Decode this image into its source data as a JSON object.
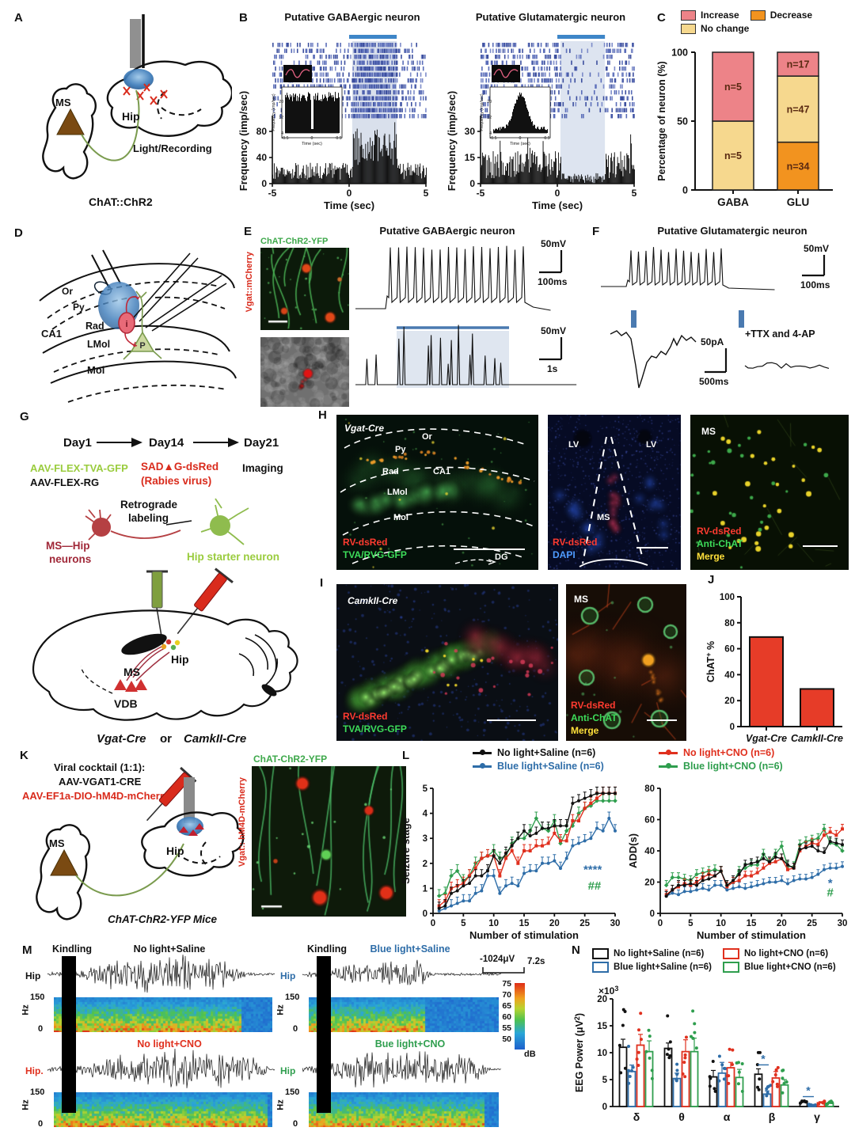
{
  "colors": {
    "black": "#111111",
    "red": "#e0301e",
    "blue": "#2e6da8",
    "green": "#2f9e4e",
    "stim_blue": "#4a7ab0",
    "raster_blue": "#4a5ca8",
    "bar_red": "#e63c28",
    "salmon": "#ed8388",
    "orange": "#f2931f",
    "pale_yellow": "#f6d88e"
  },
  "panelA": {
    "letter": "A",
    "ms": "MS",
    "hip": "Hip",
    "light": "Light/Recording",
    "caption": "ChAT::ChR2"
  },
  "panelB": {
    "letter": "B",
    "gaba": {
      "title": "Putative GABAergic neuron"
    },
    "glu": {
      "title": "Putative Glutamatergic neuron"
    }
  },
  "panelC": {
    "letter": "C"
  },
  "panelD": {
    "letter": "D",
    "or": "Or",
    "py": "Py",
    "rad": "Rad",
    "ca1": "CA1",
    "lmol": "LMol",
    "mol": "Mol",
    "i": "i",
    "p": "P"
  },
  "panelE": {
    "letter": "E",
    "title": "Putative GABAergic neuron",
    "img_top": "ChAT-ChR2-YFP",
    "img_side": "Vgat::mCherry",
    "scale1a": "50mV",
    "scale1b": "100ms",
    "scale2a": "50mV",
    "scale2b": "1s"
  },
  "panelF": {
    "letter": "F",
    "title": "Putative Glutamatergic neuron",
    "scale1a": "50mV",
    "scale1b": "100ms",
    "scale2a": "50pA",
    "scale2b": "500ms",
    "ttx": "+TTX and 4-AP"
  },
  "panelG": {
    "letter": "G",
    "day1": "Day1",
    "day14": "Day14",
    "day21": "Day21",
    "v1": "AAV-FLEX-TVA-GFP",
    "v2": "AAV-FLEX-RG",
    "v3": "SAD▲G-dsRed",
    "v3b": "(Rabies virus)",
    "imaging": "Imaging",
    "retro1": "Retrograde",
    "retro2": "labeling",
    "mship1": "MS—Hip",
    "mship2": "neurons",
    "starter": "Hip starter neuron",
    "ms": "MS",
    "vdb": "VDB",
    "hip": "Hip",
    "cap1": "Vgat-Cre",
    "capor": "or",
    "cap2": "CamkII-Cre"
  },
  "panelH": {
    "letter": "H",
    "i1": {
      "tag": "Vgat-Cre",
      "or": "Or",
      "py": "Py",
      "rad": "Rad",
      "ca1": "CA1",
      "lmol": "LMol",
      "mol": "Mol",
      "dg": "DG",
      "f1": "RV-dsRed",
      "f2": "TVA/RVG-GFP"
    },
    "i2": {
      "lv1": "LV",
      "lv2": "LV",
      "ms": "MS",
      "f1": "RV-dsRed",
      "f2": "DAPI"
    },
    "i3": {
      "ms": "MS",
      "f1": "RV-dsRed",
      "f2": "Anti-ChAT",
      "f3": "Merge"
    }
  },
  "panelI": {
    "letter": "I",
    "i1": {
      "tag": "CamkII-Cre",
      "f1": "RV-dsRed",
      "f2": "TVA/RVG-GFP"
    },
    "i2": {
      "ms": "MS",
      "f1": "RV-dsRed",
      "f2": "Anti-ChAT",
      "f3": "Merge"
    }
  },
  "panelJ": {
    "letter": "J"
  },
  "panelK": {
    "letter": "K",
    "t1": "Viral cocktail (1:1):",
    "t2": "AAV-VGAT1-CRE",
    "t3": "AAV-EF1a-DIO-hM4D-mCherry",
    "ms": "MS",
    "hip": "Hip",
    "mice": "ChAT-ChR2-YFP Mice",
    "img_top": "ChAT-ChR2-YFP",
    "img_side": "Vgat:: hM4D-mCherry"
  },
  "panelL": {
    "letter": "L",
    "legend": [
      {
        "label": "No light+Saline (n=6)",
        "color": "#111111"
      },
      {
        "label": "No light+CNO (n=6)",
        "color": "#e0301e"
      },
      {
        "label": "Blue light+Saline (n=6)",
        "color": "#2e6da8"
      },
      {
        "label": "Blue light+CNO (n=6)",
        "color": "#2f9e4e"
      }
    ]
  },
  "panelM": {
    "letter": "M",
    "kindling": "Kindling",
    "rows": [
      {
        "title": "No light+Saline",
        "color": "#111111",
        "hip": "Hip"
      },
      {
        "title": "No light+CNO",
        "color": "#e0301e",
        "hip": "Hip."
      },
      {
        "title": "Blue light+Saline",
        "color": "#2e6da8",
        "hip": "Hip"
      },
      {
        "title": "Bue light+CNO",
        "color": "#2f9e4e",
        "hip": "Hip"
      }
    ],
    "hz": "Hz",
    "f150": "150",
    "f0": "0",
    "scale_uv": "-1024μV",
    "scale_s": "7.2s",
    "db_ticks": [
      75,
      70,
      65,
      60,
      55,
      50
    ],
    "db": "dB"
  },
  "panelN": {
    "letter": "N",
    "legend": [
      {
        "label": "No light+Saline (n=6)",
        "color": "#111111"
      },
      {
        "label": "No light+CNO (n=6)",
        "color": "#e0301e"
      },
      {
        "label": "Blue light+Saline (n=6)",
        "color": "#2e6da8"
      },
      {
        "label": "Blue light+CNO (n=6)",
        "color": "#2f9e4e"
      }
    ]
  },
  "chart_data": [
    {
      "id": "B_gaba",
      "type": "raster_psth",
      "title": "Putative GABAergic neuron",
      "ylabel": "Frequency (imp/sec)",
      "yticks": [
        0,
        40,
        80
      ],
      "xlabel": "Time (sec)",
      "xticks": [
        -5,
        0,
        5
      ],
      "xlim": [
        -5,
        5
      ],
      "stim_window_sec": [
        0.2,
        3.1
      ],
      "response": "increase",
      "baseline_rate_imp_s": 18,
      "stim_rate_imp_s": 45,
      "inset": {
        "ylabel": "Frequency (imp/sec)",
        "yticks": [
          4,
          12,
          20
        ],
        "xlabel": "Time (sec)",
        "xticks": [
          -0.5,
          0,
          0.5
        ],
        "shape": "dip_at_zero"
      }
    },
    {
      "id": "B_glu",
      "type": "raster_psth",
      "title": "Putative Glutamatergic neuron",
      "ylabel": "Frequency (imp/sec)",
      "yticks": [
        0,
        15,
        30
      ],
      "xlabel": "Time (sec)",
      "xticks": [
        -5,
        0,
        5
      ],
      "xlim": [
        -5,
        5
      ],
      "stim_window_sec": [
        0.2,
        3.1
      ],
      "response": "decrease",
      "baseline_rate_imp_s": 8,
      "stim_rate_imp_s": 2,
      "inset": {
        "ylabel": "Frequency (imp/sec)",
        "yticks": [
          4,
          12,
          20
        ],
        "xlabel": "Time (sec)",
        "xticks": [
          -0.5,
          0,
          0.5
        ],
        "shape": "peak_at_zero"
      }
    },
    {
      "id": "C",
      "type": "stacked_bar",
      "ylabel": "Percentage of neuron (%)",
      "yticks": [
        0,
        50,
        100
      ],
      "ylim": [
        0,
        100
      ],
      "categories": [
        "GABA",
        "GLU"
      ],
      "legend_items": [
        {
          "label": "Increase",
          "color": "#ed8388"
        },
        {
          "label": "Decrease",
          "color": "#f2931f"
        },
        {
          "label": "No change",
          "color": "#f6d88e"
        }
      ],
      "stacks": {
        "GABA": [
          {
            "name": "No change",
            "pct": 50,
            "n": "n=5"
          },
          {
            "name": "Increase",
            "pct": 50,
            "n": "n=5"
          }
        ],
        "GLU": [
          {
            "name": "Decrease",
            "pct": 34.7,
            "n": "n=34"
          },
          {
            "name": "No change",
            "pct": 48,
            "n": "n=47"
          },
          {
            "name": "Increase",
            "pct": 17.3,
            "n": "n=17"
          }
        ]
      }
    },
    {
      "id": "J",
      "type": "bar",
      "ylabel_parts": [
        "ChAT",
        "+",
        " %"
      ],
      "yticks": [
        0,
        20,
        40,
        60,
        80,
        100
      ],
      "ylim": [
        0,
        100
      ],
      "categories": [
        "Vgat-Cre",
        "CamkII-Cre"
      ],
      "values": [
        69,
        29
      ],
      "bar_color": "#e63c28"
    },
    {
      "id": "L_stage",
      "type": "line",
      "ylabel": "Seizure stage",
      "xlabel": "Number of stimulation",
      "yticks": [
        0,
        1,
        2,
        3,
        4,
        5
      ],
      "xticks": [
        0,
        5,
        10,
        15,
        20,
        25,
        30
      ],
      "ylim": [
        0,
        5
      ],
      "xlim": [
        0,
        30
      ],
      "err": 0.25,
      "annotations": [
        {
          "text": "****",
          "color": "#2e6da8",
          "x": 26.3,
          "y": 1.6
        },
        {
          "text": "##",
          "color": "#2f9e4e",
          "x": 26.6,
          "y": 0.95
        }
      ],
      "series": [
        {
          "name": "No light+Saline (n=6)",
          "color": "#111111",
          "marker": "circle",
          "values": [
            0.2,
            0.3,
            0.8,
            0.9,
            1.1,
            1.2,
            1.5,
            1.5,
            1.7,
            2.3,
            2.0,
            2.4,
            2.7,
            3.0,
            3.3,
            3.1,
            3.2,
            3.4,
            3.4,
            3.5,
            3.5,
            3.5,
            4.4,
            4.5,
            4.6,
            4.7,
            4.8,
            4.8,
            4.8,
            4.8
          ]
        },
        {
          "name": "No light+CNO (n=6)",
          "color": "#e0301e",
          "marker": "square",
          "values": [
            0.3,
            0.5,
            1.0,
            1.1,
            1.2,
            1.5,
            1.8,
            2.2,
            2.3,
            2.3,
            1.5,
            2.2,
            2.5,
            2.0,
            2.5,
            2.5,
            2.7,
            2.7,
            2.8,
            3.2,
            2.9,
            2.9,
            3.7,
            3.7,
            4.2,
            4.4,
            4.6,
            4.8,
            4.8,
            4.8
          ]
        },
        {
          "name": "Blue light+Saline (n=6)",
          "color": "#2e6da8",
          "marker": "circle",
          "values": [
            0.1,
            0.2,
            0.3,
            0.4,
            0.5,
            0.5,
            0.8,
            0.9,
            1.5,
            1.5,
            0.8,
            1.1,
            1.2,
            1.1,
            1.6,
            1.7,
            1.7,
            2.0,
            2.0,
            2.1,
            1.8,
            2.2,
            2.7,
            2.8,
            2.9,
            3.0,
            3.4,
            3.3,
            3.8,
            3.3
          ]
        },
        {
          "name": "Blue light+CNO (n=6)",
          "color": "#2f9e4e",
          "marker": "diamond",
          "values": [
            0.7,
            0.8,
            1.5,
            1.7,
            1.3,
            1.5,
            2.0,
            2.2,
            2.3,
            2.5,
            2.2,
            2.3,
            2.8,
            3.0,
            3.0,
            3.3,
            3.8,
            3.4,
            3.3,
            3.7,
            2.8,
            3.3,
            3.5,
            4.0,
            4.2,
            4.3,
            4.5,
            4.5,
            4.5,
            4.5
          ]
        }
      ]
    },
    {
      "id": "L_add",
      "type": "line",
      "ylabel": "ADD(s)",
      "xlabel": "Number of stimulation",
      "yticks": [
        0,
        20,
        40,
        60,
        80
      ],
      "xticks": [
        0,
        5,
        10,
        15,
        20,
        25,
        30
      ],
      "ylim": [
        0,
        80
      ],
      "xlim": [
        0,
        30
      ],
      "err": 3,
      "annotations": [
        {
          "text": "*",
          "color": "#2e6da8",
          "x": 28,
          "y": 17
        },
        {
          "text": "#",
          "color": "#2f9e4e",
          "x": 28,
          "y": 11
        }
      ],
      "series": [
        {
          "name": "No light+Saline (n=6)",
          "color": "#111111",
          "marker": "circle",
          "values": [
            11,
            15,
            18,
            18,
            19,
            18,
            21,
            22,
            24,
            27,
            18,
            21,
            25,
            31,
            32,
            33,
            35,
            33,
            36,
            35,
            31,
            29,
            41,
            42,
            43,
            40,
            39,
            46,
            45,
            44
          ]
        },
        {
          "name": "No light+CNO (n=6)",
          "color": "#e0301e",
          "marker": "square",
          "values": [
            12,
            15,
            17,
            19,
            18,
            20,
            23,
            25,
            24,
            27,
            17,
            20,
            21,
            24,
            24,
            26,
            29,
            32,
            33,
            35,
            28,
            29,
            40,
            43,
            45,
            44,
            50,
            52,
            50,
            54
          ]
        },
        {
          "name": "Blue light+Saline (n=6)",
          "color": "#2e6da8",
          "marker": "circle",
          "values": [
            11,
            13,
            12,
            14,
            14,
            15,
            16,
            15,
            18,
            18,
            15,
            16,
            17,
            16,
            17,
            18,
            19,
            20,
            20,
            21,
            19,
            21,
            22,
            22,
            23,
            25,
            28,
            29,
            29,
            30
          ]
        },
        {
          "name": "Blue light+CNO (n=6)",
          "color": "#2f9e4e",
          "marker": "diamond",
          "values": [
            18,
            23,
            23,
            22,
            21,
            25,
            26,
            27,
            28,
            27,
            18,
            20,
            27,
            29,
            31,
            31,
            38,
            33,
            38,
            43,
            30,
            30,
            44,
            46,
            47,
            48,
            54,
            45,
            44,
            40
          ]
        }
      ]
    },
    {
      "id": "N",
      "type": "grouped_bar",
      "ylabel_parts": [
        "EEG Power (μV",
        "2",
        ")"
      ],
      "scale_parts": [
        "×10",
        "3"
      ],
      "yticks": [
        0,
        5,
        10,
        15,
        20
      ],
      "ylim": [
        0,
        20
      ],
      "categories": [
        "δ",
        "θ",
        "α",
        "β",
        "γ"
      ],
      "series": [
        {
          "name": "No light+Saline (n=6)",
          "color": "#111111",
          "values": [
            11,
            10.8,
            5.5,
            6,
            0.8
          ],
          "err": [
            1.5,
            1,
            1.2,
            1,
            0.3
          ]
        },
        {
          "name": "Blue light+Saline (n=6)",
          "color": "#2e6da8",
          "values": [
            6.5,
            5.2,
            6.2,
            2.3,
            0.25
          ],
          "err": [
            1.2,
            1,
            2,
            0.6,
            0.15
          ]
        },
        {
          "name": "No light+CNO (n=6)",
          "color": "#e0301e",
          "values": [
            11.4,
            10.2,
            7.2,
            5.3,
            0.7
          ],
          "err": [
            2,
            2.2,
            1,
            1.2,
            0.2
          ]
        },
        {
          "name": "Blue light+CNO (n=6)",
          "color": "#2f9e4e",
          "values": [
            10.2,
            10.2,
            5.4,
            4,
            0.6
          ],
          "err": [
            2,
            2.5,
            1.5,
            1,
            0.2
          ]
        }
      ],
      "sig": [
        {
          "group": 3,
          "text": "*",
          "color": "#2e6da8"
        },
        {
          "group": 4,
          "text": "*",
          "color": "#2e6da8"
        }
      ]
    }
  ]
}
